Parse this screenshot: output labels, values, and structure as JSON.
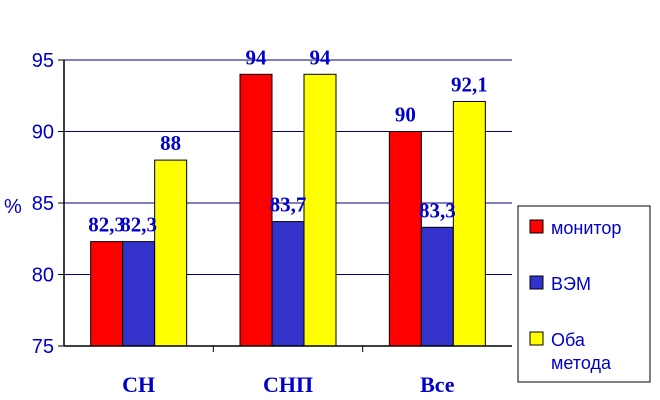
{
  "chart_data": {
    "type": "bar",
    "categories": [
      "СН",
      "СНП",
      "Все"
    ],
    "series": [
      {
        "name": "монитор",
        "values": [
          82.3,
          94,
          90
        ],
        "labels": [
          "82,3",
          "94",
          "90"
        ],
        "color": "#ff0000"
      },
      {
        "name": "ВЭМ",
        "values": [
          82.3,
          83.7,
          83.3
        ],
        "labels": [
          "82,3",
          "83,7",
          "83,3"
        ],
        "color": "#3333cc"
      },
      {
        "name": "Оба метода",
        "values": [
          88,
          94,
          92.1
        ],
        "labels": [
          "88",
          "94",
          "92,1"
        ],
        "color": "#ffff00"
      }
    ],
    "title": "",
    "xlabel": "",
    "ylabel": "%",
    "ylim": [
      75,
      95
    ],
    "yticks": [
      75,
      80,
      85,
      90,
      95
    ],
    "grid": true,
    "legend_position": "right"
  },
  "legend": {
    "items": [
      {
        "lines": [
          "монитор"
        ]
      },
      {
        "lines": [
          "ВЭМ"
        ]
      },
      {
        "lines": [
          "Оба",
          "метода"
        ]
      }
    ]
  },
  "colors": {
    "axis": "#000000",
    "text": "#0000cc",
    "grid": "#000080"
  }
}
